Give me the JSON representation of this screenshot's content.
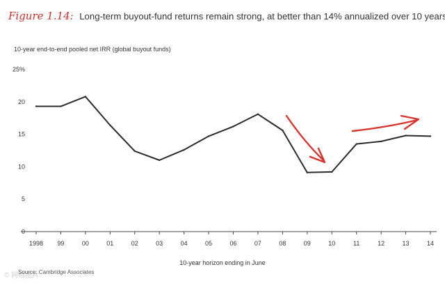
{
  "header": {
    "figure_label": "Figure 1.14:",
    "title": "Long-term buyout-fund returns remain strong, at better than 14% annualized over 10 years"
  },
  "chart_data": {
    "type": "line",
    "ylabel": "10-year end-to-end pooled net IRR (global buyout funds)",
    "xlabel": "10-year horizon ending in June",
    "ylim": [
      0,
      25
    ],
    "y_ticks": [
      "25%",
      "20",
      "15",
      "10",
      "5",
      "0"
    ],
    "y_tick_values": [
      25,
      20,
      15,
      10,
      5,
      0
    ],
    "categories": [
      "1998",
      "99",
      "00",
      "01",
      "02",
      "03",
      "04",
      "05",
      "06",
      "07",
      "08",
      "09",
      "10",
      "11",
      "12",
      "13",
      "14"
    ],
    "series": [
      {
        "name": "IRR",
        "values": [
          19.3,
          19.3,
          20.8,
          16.4,
          12.4,
          11.0,
          12.6,
          14.7,
          16.2,
          18.1,
          15.6,
          9.1,
          9.2,
          13.5,
          13.9,
          14.8,
          14.7
        ]
      }
    ],
    "annotations": [
      {
        "type": "arrow",
        "direction": "down",
        "color": "#d8342c",
        "from_category": "08",
        "to_category": "10"
      },
      {
        "type": "arrow",
        "direction": "up",
        "color": "#d8342c",
        "from_category": "11",
        "to_category": "14"
      }
    ],
    "line_color": "#2b2b2b",
    "accent_color": "#d8342c"
  },
  "footer": {
    "source": "Source: Cambridge Associates",
    "watermark": "© 网络图片"
  }
}
